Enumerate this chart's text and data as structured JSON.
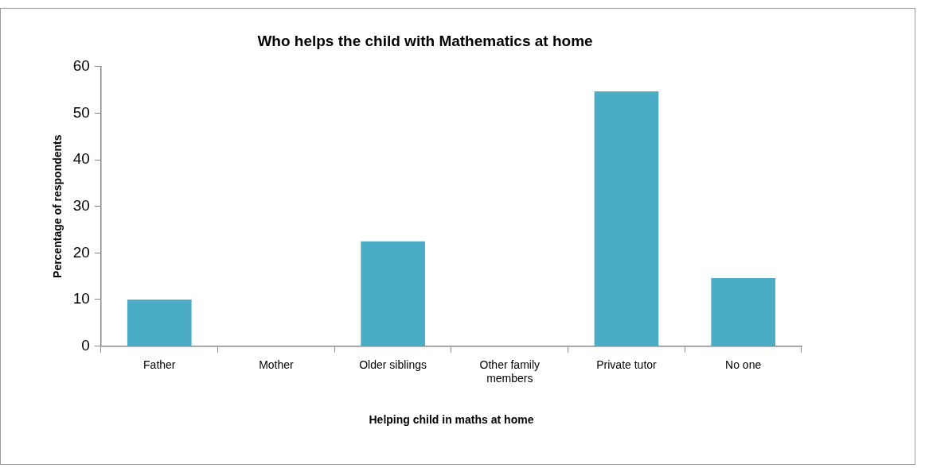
{
  "chart_data": {
    "type": "bar",
    "title": "Who helps the child with Mathematics at home",
    "xlabel": "Helping child in maths at home",
    "ylabel": "Percentage of respondents",
    "categories": [
      "Father",
      "Mother",
      "Older siblings",
      "Other family members",
      "Private tutor",
      "No one"
    ],
    "values": [
      10,
      0,
      22.5,
      0,
      54.7,
      14.6
    ],
    "color": "#4bacc6",
    "ylim": [
      0,
      60
    ],
    "yticks": [
      0,
      10,
      20,
      30,
      40,
      50,
      60
    ],
    "grid": false,
    "legend": false
  }
}
